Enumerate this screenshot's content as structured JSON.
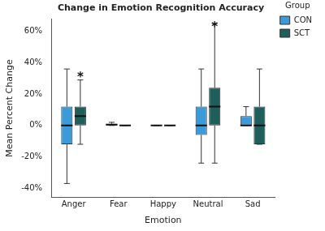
{
  "chart_data": {
    "type": "box",
    "title": "Change in Emotion Recognition Accuracy",
    "x_label": "Emotion",
    "y_label": "Mean Percent Change",
    "legend_title": "Group",
    "legend": "right",
    "grid": false,
    "categories": [
      "Anger",
      "Fear",
      "Happy",
      "Neutral",
      "Sad"
    ],
    "series": [
      {
        "name": "CON",
        "color": "#3b9bd9",
        "values": [
          [
            -37,
            -12,
            0,
            12,
            36
          ],
          [
            0,
            0,
            0.5,
            1,
            2
          ],
          [
            0,
            0,
            0,
            0,
            0
          ],
          [
            -24,
            -6,
            0,
            12,
            36
          ],
          [
            0,
            0,
            0,
            6,
            12
          ]
        ]
      },
      {
        "name": "SCT",
        "color": "#1e5f5c",
        "values": [
          [
            -12,
            0,
            6,
            12,
            29
          ],
          [
            0,
            0,
            0,
            0,
            0
          ],
          [
            0,
            0,
            0,
            0,
            0
          ],
          [
            -24,
            0,
            12,
            24,
            65
          ],
          [
            -12,
            -12,
            0,
            12,
            36
          ]
        ]
      }
    ],
    "annotations": [
      {
        "text": "*",
        "category": "Anger",
        "series": "SCT"
      },
      {
        "text": "*",
        "category": "Neutral",
        "series": "SCT"
      }
    ],
    "ylim": [
      -46,
      68
    ],
    "yticks": [
      {
        "value": -40,
        "label": "-40%"
      },
      {
        "value": -20,
        "label": "-20%"
      },
      {
        "value": 0,
        "label": "0%"
      },
      {
        "value": 20,
        "label": "20%"
      },
      {
        "value": 40,
        "label": "40%"
      },
      {
        "value": 60,
        "label": "60%"
      }
    ]
  }
}
